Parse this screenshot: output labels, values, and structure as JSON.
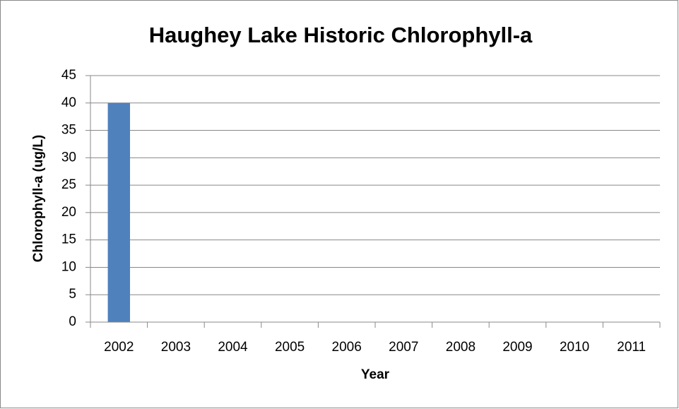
{
  "chart_data": {
    "type": "bar",
    "title": "Haughey Lake Historic Chlorophyll-a",
    "x_label": "Year",
    "y_label": "Chlorophyll-a  (ug/L)",
    "categories": [
      "2002",
      "2003",
      "2004",
      "2005",
      "2006",
      "2007",
      "2008",
      "2009",
      "2010",
      "2011"
    ],
    "values": [
      40,
      null,
      null,
      null,
      null,
      null,
      null,
      null,
      null,
      null
    ],
    "color": "#4f81bd",
    "ylim": [
      0,
      45
    ],
    "yticks": [
      0,
      5,
      10,
      15,
      20,
      25,
      30,
      35,
      40,
      45
    ],
    "grid": true
  }
}
